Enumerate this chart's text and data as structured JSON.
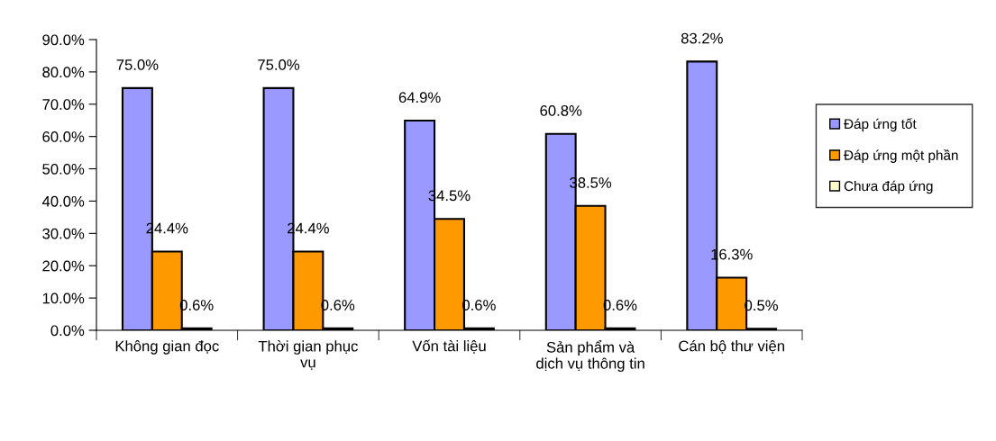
{
  "chart_data": {
    "type": "bar",
    "categories": [
      "Không gian đọc",
      "Thời gian phục\nvụ",
      "Vốn tài liệu",
      "Sản phẩm và\ndịch vụ thông tin",
      "Cán bộ thư viện"
    ],
    "series": [
      {
        "name": "Đáp ứng tốt",
        "color": "#9999ff",
        "values": [
          75.0,
          75.0,
          64.9,
          60.8,
          83.2
        ],
        "value_labels": [
          "75.0%",
          "75.0%",
          "64.9%",
          "60.8%",
          "83.2%"
        ]
      },
      {
        "name": "Đáp ứng một phần",
        "color": "#ff9900",
        "values": [
          24.4,
          24.4,
          34.5,
          38.5,
          16.3
        ],
        "value_labels": [
          "24.4%",
          "24.4%",
          "34.5%",
          "38.5%",
          "16.3%"
        ]
      },
      {
        "name": "Chưa đáp ứng",
        "color": "#ffffcc",
        "values": [
          0.6,
          0.6,
          0.6,
          0.6,
          0.5
        ],
        "value_labels": [
          "0.6%",
          "0.6%",
          "0.6%",
          "0.6%",
          "0.5%"
        ]
      }
    ],
    "ylim": [
      0,
      90
    ],
    "yticks": [
      {
        "value": 0,
        "label": "0.0%"
      },
      {
        "value": 10,
        "label": "10.0%"
      },
      {
        "value": 20,
        "label": "20.0%"
      },
      {
        "value": 30,
        "label": "30.0%"
      },
      {
        "value": 40,
        "label": "40.0%"
      },
      {
        "value": 50,
        "label": "50.0%"
      },
      {
        "value": 60,
        "label": "60.0%"
      },
      {
        "value": 70,
        "label": "70.0%"
      },
      {
        "value": 80,
        "label": "80.0%"
      },
      {
        "value": 90,
        "label": "90.0%"
      }
    ],
    "grid": false,
    "legend": "right"
  }
}
